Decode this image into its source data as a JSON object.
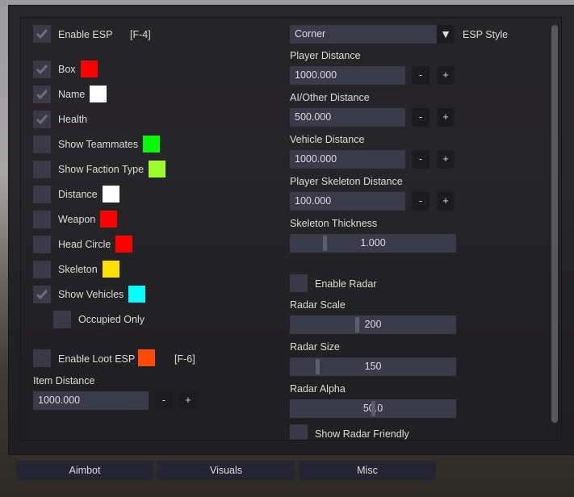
{
  "left": {
    "enable_esp": {
      "label": "Enable ESP",
      "hotkey": "[F-4]",
      "checked": true
    },
    "options": [
      {
        "label": "Box",
        "checked": true,
        "color": "#ff0000"
      },
      {
        "label": "Name",
        "checked": true,
        "color": "#ffffff"
      },
      {
        "label": "Health",
        "checked": true,
        "color": null
      },
      {
        "label": "Show Teammates",
        "checked": false,
        "color": "#00ff00"
      },
      {
        "label": "Show Faction Type",
        "checked": false,
        "color": "#9aff2a"
      },
      {
        "label": "Distance",
        "checked": false,
        "color": "#ffffff"
      },
      {
        "label": "Weapon",
        "checked": false,
        "color": "#ff0000"
      },
      {
        "label": "Head Circle",
        "checked": false,
        "color": "#ff0000"
      },
      {
        "label": "Skeleton",
        "checked": false,
        "color": "#ffe000"
      },
      {
        "label": "Show Vehicles",
        "checked": true,
        "color": "#00ffff"
      },
      {
        "label": "Occupied Only",
        "checked": false,
        "color": null
      }
    ],
    "loot": {
      "label": "Enable Loot ESP",
      "hotkey": "[F-6]",
      "checked": false,
      "color": "#ff4a00"
    },
    "item_distance": {
      "label": "Item Distance",
      "value": "1000.000",
      "minus": "-",
      "plus": "+"
    }
  },
  "right": {
    "esp_style": {
      "value": "Corner",
      "label": "ESP Style",
      "arrow": "▼"
    },
    "distances": [
      {
        "label": "Player Distance",
        "value": "1000.000",
        "minus": "-",
        "plus": "+"
      },
      {
        "label": "AI/Other Distance",
        "value": "500.000",
        "minus": "-",
        "plus": "+"
      },
      {
        "label": "Vehicle Distance",
        "value": "1000.000",
        "minus": "-",
        "plus": "+"
      },
      {
        "label": "Player Skeleton Distance",
        "value": "100.000",
        "minus": "-",
        "plus": "+"
      }
    ],
    "skeleton_thickness": {
      "label": "Skeleton Thickness",
      "value": "1.000",
      "fraction": 0.2
    },
    "enable_radar": {
      "label": "Enable Radar",
      "checked": false
    },
    "radar_sliders": [
      {
        "label": "Radar Scale",
        "value": "200",
        "fraction": 0.4
      },
      {
        "label": "Radar Size",
        "value": "150",
        "fraction": 0.15
      },
      {
        "label": "Radar Alpha",
        "value": "50.0",
        "fraction": 0.5
      }
    ],
    "show_radar_friendly": {
      "label": "Show Radar Friendly",
      "checked": false
    }
  },
  "tabs": [
    "Aimbot",
    "Visuals",
    "Misc"
  ],
  "active_tab": "Visuals"
}
